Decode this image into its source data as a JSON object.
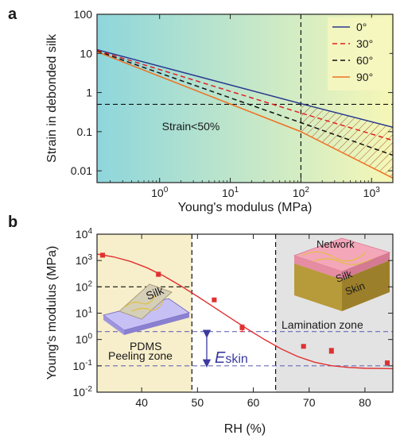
{
  "chart_data": [
    {
      "panel": "a",
      "type": "line",
      "xlabel": "Young's modulus (MPa)",
      "ylabel": "Strain in debonded silk",
      "xscale": "log",
      "yscale": "log",
      "xlim": [
        0.13,
        2000
      ],
      "ylim": [
        0.005,
        100
      ],
      "xticks": [
        1,
        10,
        100,
        1000
      ],
      "xtick_labels": [
        {
          "base": "10",
          "exp": "0"
        },
        {
          "base": "10",
          "exp": "1"
        },
        {
          "base": "10",
          "exp": "2"
        },
        {
          "base": "10",
          "exp": "3"
        }
      ],
      "yticks": [
        0.01,
        0.1,
        1,
        10,
        100
      ],
      "ytick_labels": [
        "0.01",
        "0.1",
        "1",
        "10",
        "100"
      ],
      "legend_position": "top-right",
      "series": [
        {
          "name": "0°",
          "color": "#2b3a8f",
          "dash": "solid",
          "x": [
            0.13,
            100,
            2000
          ],
          "y": [
            12.5,
            0.52,
            0.13
          ]
        },
        {
          "name": "30°",
          "color": "#e02020",
          "dash": "dashed",
          "x": [
            0.13,
            100,
            2000
          ],
          "y": [
            12.0,
            0.3,
            0.06
          ]
        },
        {
          "name": "60°",
          "color": "#111111",
          "dash": "dashed",
          "x": [
            0.13,
            100,
            2000
          ],
          "y": [
            11.5,
            0.17,
            0.025
          ]
        },
        {
          "name": "90°",
          "color": "#f07020",
          "dash": "solid",
          "x": [
            0.13,
            100,
            2000
          ],
          "y": [
            11.0,
            0.1,
            0.0065
          ]
        }
      ],
      "reference_lines": [
        {
          "orientation": "horizontal",
          "value": 0.5
        },
        {
          "orientation": "vertical",
          "value": 100
        }
      ],
      "annotations": [
        "Strain<50%"
      ],
      "hatched_region": {
        "x_from": 100,
        "x_to": 2000,
        "between": [
          "0°",
          "90°"
        ]
      },
      "background_gradient": [
        "#8ed6dc",
        "#f6f7b6"
      ]
    },
    {
      "panel": "b",
      "type": "scatter",
      "xlabel": "RH (%)",
      "ylabel": "Young's modulus (MPa)",
      "xscale": "linear",
      "yscale": "log",
      "xlim": [
        32,
        85
      ],
      "ylim": [
        0.01,
        10000
      ],
      "xticks": [
        40,
        50,
        60,
        70,
        80
      ],
      "xtick_labels": [
        "40",
        "50",
        "60",
        "70",
        "80"
      ],
      "yticks": [
        0.01,
        0.1,
        1,
        10,
        100,
        1000,
        10000
      ],
      "ytick_labels": [
        {
          "base": "10",
          "exp": "-2"
        },
        {
          "base": "10",
          "exp": "-1"
        },
        {
          "base": "10",
          "exp": "0"
        },
        {
          "base": "10",
          "exp": "1"
        },
        {
          "base": "10",
          "exp": "2"
        },
        {
          "base": "10",
          "exp": "3"
        },
        {
          "base": "10",
          "exp": "4"
        }
      ],
      "points": {
        "color": "#e03030",
        "x": [
          33,
          43,
          53,
          58,
          69,
          74,
          84
        ],
        "y": [
          1600,
          300,
          32,
          2.8,
          0.55,
          0.38,
          0.13
        ],
        "err_low": [
          1350,
          250,
          28,
          2.0,
          0.48,
          0.3,
          0.11
        ],
        "err_high": [
          1850,
          360,
          36,
          3.6,
          0.62,
          0.46,
          0.15
        ]
      },
      "fit_curve": {
        "color": "#e03030",
        "x": [
          32,
          35,
          38,
          41,
          44,
          47,
          50,
          53,
          56,
          59,
          62,
          65,
          68,
          71,
          74,
          77,
          80,
          83,
          85
        ],
        "y": [
          1760,
          1370,
          923,
          525,
          256,
          109,
          43.4,
          16.6,
          6.33,
          2.45,
          1.0,
          0.44,
          0.224,
          0.137,
          0.101,
          0.087,
          0.081,
          0.079,
          0.078
        ]
      },
      "reference_lines": [
        {
          "orientation": "vertical",
          "value": 49
        },
        {
          "orientation": "vertical",
          "value": 64
        },
        {
          "orientation": "horizontal",
          "value": 2,
          "color": "#6a6ab8"
        },
        {
          "orientation": "horizontal",
          "value": 0.1,
          "color": "#6a6ab8"
        },
        {
          "orientation": "horizontal",
          "value": 100,
          "x_to": 49
        }
      ],
      "zones": [
        {
          "label": "Peeling zone",
          "x_from": 32,
          "x_to": 49,
          "color": "#f7eecb"
        },
        {
          "label": "Lamination zone",
          "x_from": 64,
          "x_to": 85,
          "color": "#e3e3e3"
        }
      ],
      "arrow_label": {
        "main": "E",
        "sub": "skin",
        "color": "#3a3aa0"
      },
      "inset_left": {
        "labels": [
          "Silk",
          "PDMS"
        ]
      },
      "inset_right": {
        "labels": [
          "Network",
          "Silk",
          "Skin"
        ]
      }
    }
  ]
}
